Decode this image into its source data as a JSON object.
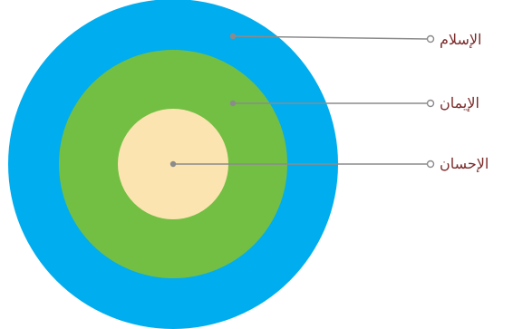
{
  "diagram": {
    "layers": [
      {
        "id": "islam",
        "label": "الإسلام",
        "color": "#00ADEF"
      },
      {
        "id": "iman",
        "label": "الإيمان",
        "color": "#72BF44"
      },
      {
        "id": "ihsan",
        "label": "الإحسان",
        "color": "#FCE4B0"
      }
    ],
    "connector_color": "#8b8b8b"
  }
}
